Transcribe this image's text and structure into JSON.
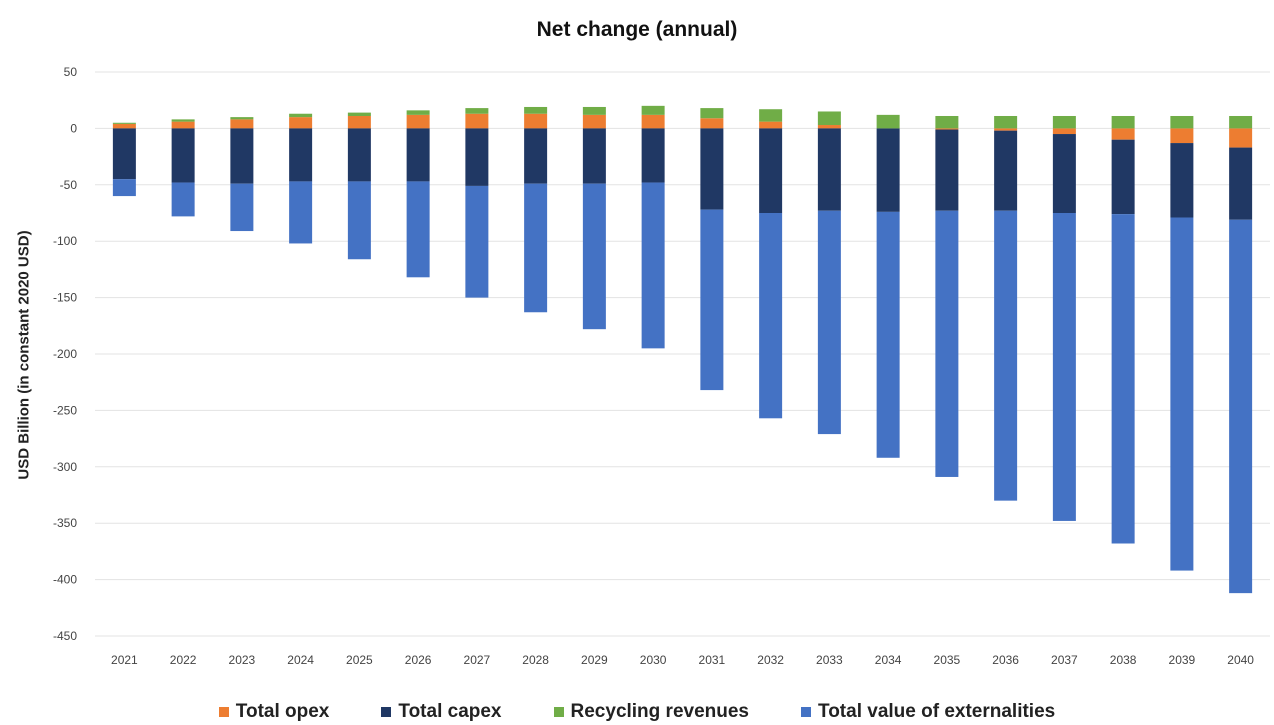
{
  "chart_data": {
    "type": "bar",
    "stacked": true,
    "title": "Net change (annual)",
    "xlabel": "",
    "ylabel": "USD Billion (in constant 2020 USD)",
    "ylim": [
      -450,
      50
    ],
    "yticks": [
      50,
      0,
      -50,
      -100,
      -150,
      -200,
      -250,
      -300,
      -350,
      -400,
      -450
    ],
    "grid": true,
    "legend_position": "bottom",
    "categories": [
      "2021",
      "2022",
      "2023",
      "2024",
      "2025",
      "2026",
      "2027",
      "2028",
      "2029",
      "2030",
      "2031",
      "2032",
      "2033",
      "2034",
      "2035",
      "2036",
      "2037",
      "2038",
      "2039",
      "2040"
    ],
    "series": [
      {
        "name": "Total opex",
        "color": "#ed7d31",
        "values": [
          4,
          6,
          8,
          10,
          11,
          12,
          13,
          13,
          12,
          12,
          9,
          6,
          3,
          0,
          -1,
          -2,
          -5,
          -10,
          -13,
          -17
        ]
      },
      {
        "name": "Total capex",
        "color": "#203864",
        "values": [
          -45,
          -48,
          -49,
          -47,
          -47,
          -47,
          -51,
          -49,
          -49,
          -48,
          -72,
          -75,
          -73,
          -74,
          -72,
          -71,
          -70,
          -66,
          -66,
          -64
        ]
      },
      {
        "name": "Recycling revenues",
        "color": "#70ad47",
        "values": [
          1,
          2,
          2,
          3,
          3,
          4,
          5,
          6,
          7,
          8,
          9,
          11,
          12,
          12,
          11,
          11,
          11,
          11,
          11,
          11
        ]
      },
      {
        "name": "Total value of externalities",
        "color": "#4472c4",
        "values": [
          -15,
          -30,
          -42,
          -55,
          -69,
          -85,
          -99,
          -114,
          -129,
          -147,
          -160,
          -182,
          -198,
          -218,
          -236,
          -257,
          -273,
          -292,
          -313,
          -331
        ]
      }
    ]
  }
}
